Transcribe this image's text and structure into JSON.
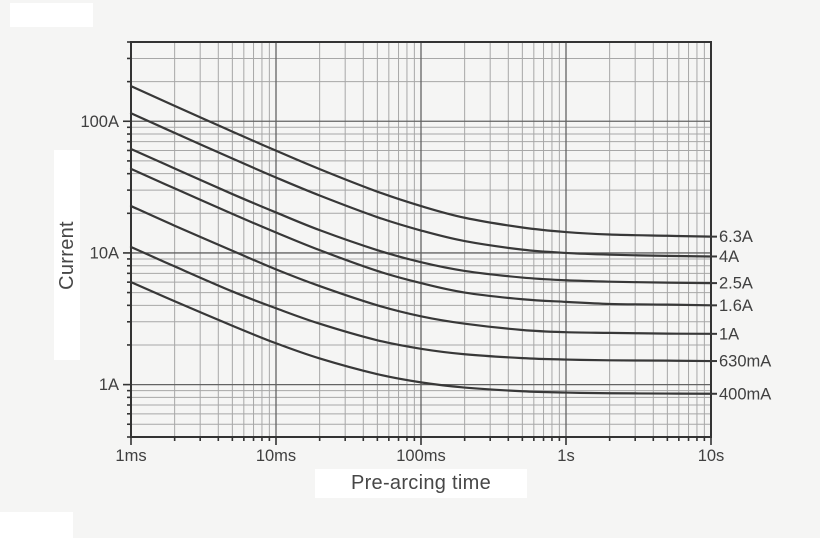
{
  "page": {
    "background": "#f5f5f4"
  },
  "chart_data": {
    "type": "line",
    "title": "",
    "xlabel": "Pre-arcing time",
    "ylabel": "Current",
    "x_scale": "log",
    "y_scale": "log",
    "x_unit": "seconds",
    "y_unit": "amperes",
    "xlim": [
      0.001,
      10
    ],
    "ylim": [
      0.4,
      400
    ],
    "grid": "log-log grid, minor lines at 2-9 each decade, darker lines at decades",
    "legend_position": "labels at right ends of curves",
    "x_ticks": [
      {
        "value": 0.001,
        "label": "1ms"
      },
      {
        "value": 0.01,
        "label": "10ms"
      },
      {
        "value": 0.1,
        "label": "100ms"
      },
      {
        "value": 1,
        "label": "1s"
      },
      {
        "value": 10,
        "label": "10s"
      }
    ],
    "y_ticks": [
      {
        "value": 1,
        "label": "1A"
      },
      {
        "value": 10,
        "label": "10A"
      },
      {
        "value": 100,
        "label": "100A"
      }
    ],
    "series": [
      {
        "label": "6.3A",
        "points": [
          [
            0.001,
            184.8
          ],
          [
            0.002,
            131.0
          ],
          [
            0.005,
            83.5
          ],
          [
            0.01,
            59.8
          ],
          [
            0.02,
            43.3
          ],
          [
            0.05,
            29.2
          ],
          [
            0.1,
            22.7
          ],
          [
            0.2,
            18.5
          ],
          [
            0.5,
            15.6
          ],
          [
            1,
            14.4
          ],
          [
            2,
            13.8
          ],
          [
            5,
            13.5
          ],
          [
            10,
            13.3
          ]
        ]
      },
      {
        "label": "4A",
        "points": [
          [
            0.001,
            115.0
          ],
          [
            0.002,
            81.6
          ],
          [
            0.005,
            52.1
          ],
          [
            0.01,
            37.4
          ],
          [
            0.02,
            27.3
          ],
          [
            0.05,
            18.7
          ],
          [
            0.1,
            14.8
          ],
          [
            0.2,
            12.3
          ],
          [
            0.5,
            10.6
          ],
          [
            1,
            10.0
          ],
          [
            2,
            9.7
          ],
          [
            5,
            9.5
          ],
          [
            10,
            9.4
          ]
        ]
      },
      {
        "label": "2.5A",
        "points": [
          [
            0.001,
            61.6
          ],
          [
            0.002,
            43.8
          ],
          [
            0.005,
            28.0
          ],
          [
            0.01,
            20.3
          ],
          [
            0.02,
            14.9
          ],
          [
            0.05,
            10.5
          ],
          [
            0.1,
            8.5
          ],
          [
            0.2,
            7.3
          ],
          [
            0.5,
            6.5
          ],
          [
            1,
            6.2
          ],
          [
            2,
            6.05
          ],
          [
            5,
            5.95
          ],
          [
            10,
            5.9
          ]
        ]
      },
      {
        "label": "1.6A",
        "points": [
          [
            0.001,
            43.5
          ],
          [
            0.002,
            30.9
          ],
          [
            0.005,
            19.8
          ],
          [
            0.01,
            14.3
          ],
          [
            0.02,
            10.5
          ],
          [
            0.05,
            7.3
          ],
          [
            0.1,
            5.9
          ],
          [
            0.2,
            5.0
          ],
          [
            0.5,
            4.45
          ],
          [
            1,
            4.25
          ],
          [
            2,
            4.1
          ],
          [
            5,
            4.05
          ],
          [
            10,
            4.0
          ]
        ]
      },
      {
        "label": "1A",
        "points": [
          [
            0.001,
            22.7
          ],
          [
            0.002,
            16.1
          ],
          [
            0.005,
            10.4
          ],
          [
            0.01,
            7.5
          ],
          [
            0.02,
            5.6
          ],
          [
            0.05,
            4.0
          ],
          [
            0.1,
            3.3
          ],
          [
            0.2,
            2.9
          ],
          [
            0.5,
            2.6
          ],
          [
            1,
            2.5
          ],
          [
            2,
            2.47
          ],
          [
            5,
            2.44
          ],
          [
            10,
            2.43
          ]
        ]
      },
      {
        "label": "630mA",
        "points": [
          [
            0.001,
            11.1
          ],
          [
            0.002,
            7.9
          ],
          [
            0.005,
            5.1
          ],
          [
            0.01,
            3.8
          ],
          [
            0.02,
            2.9
          ],
          [
            0.05,
            2.17
          ],
          [
            0.1,
            1.87
          ],
          [
            0.2,
            1.7
          ],
          [
            0.5,
            1.59
          ],
          [
            1,
            1.55
          ],
          [
            2,
            1.53
          ],
          [
            5,
            1.52
          ],
          [
            10,
            1.51
          ]
        ]
      },
      {
        "label": "400mA",
        "points": [
          [
            0.001,
            6.0
          ],
          [
            0.002,
            4.3
          ],
          [
            0.005,
            2.8
          ],
          [
            0.01,
            2.06
          ],
          [
            0.02,
            1.58
          ],
          [
            0.05,
            1.2
          ],
          [
            0.1,
            1.04
          ],
          [
            0.2,
            0.95
          ],
          [
            0.5,
            0.89
          ],
          [
            1,
            0.87
          ],
          [
            2,
            0.86
          ],
          [
            5,
            0.855
          ],
          [
            10,
            0.852
          ]
        ]
      }
    ],
    "colors": {
      "curve": "#383838",
      "grid_minor": "#a7a7a7",
      "grid_major": "#636363",
      "frame": "#333333",
      "text": "#404040",
      "background": "#f5f5f4",
      "label_mask": "#ffffff"
    }
  }
}
